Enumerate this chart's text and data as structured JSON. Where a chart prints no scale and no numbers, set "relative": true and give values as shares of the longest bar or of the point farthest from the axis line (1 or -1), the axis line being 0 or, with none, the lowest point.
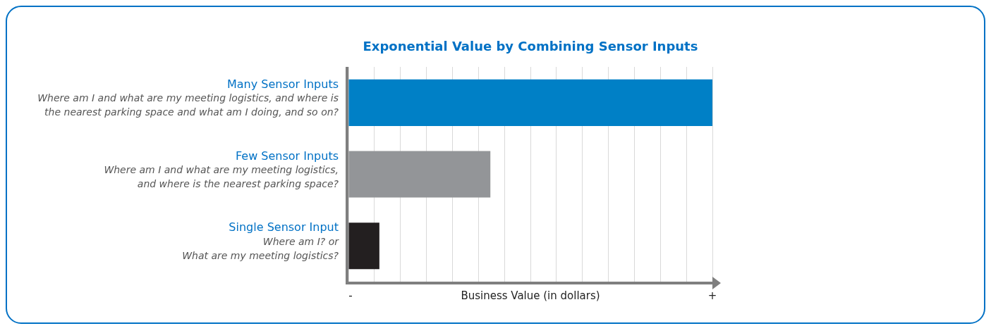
{
  "chart_data": {
    "type": "bar",
    "orientation": "horizontal",
    "relative": true,
    "title": "Exponential Value by Combining Sensor Inputs",
    "xlabel": "Business Value (in dollars)",
    "categories": [
      "Many Sensor Inputs\nWhere am I and what are my meeting logistics, and where is\nthe nearest parking space and what am I doing, and so on?",
      "Few Sensor Inputs\nWhere am I and what are my meeting logistics,\nand where is the nearest parking space?",
      "Single Sensor Input\nWhere am I? or\nWhat are my meeting logistics?"
    ],
    "values": [
      1,
      0.39,
      0.085
    ],
    "colors": [
      "#0080c6",
      "#939598",
      "#231f20"
    ],
    "annotations": [
      "-",
      "+"
    ],
    "grid": "x",
    "legend": false
  }
}
